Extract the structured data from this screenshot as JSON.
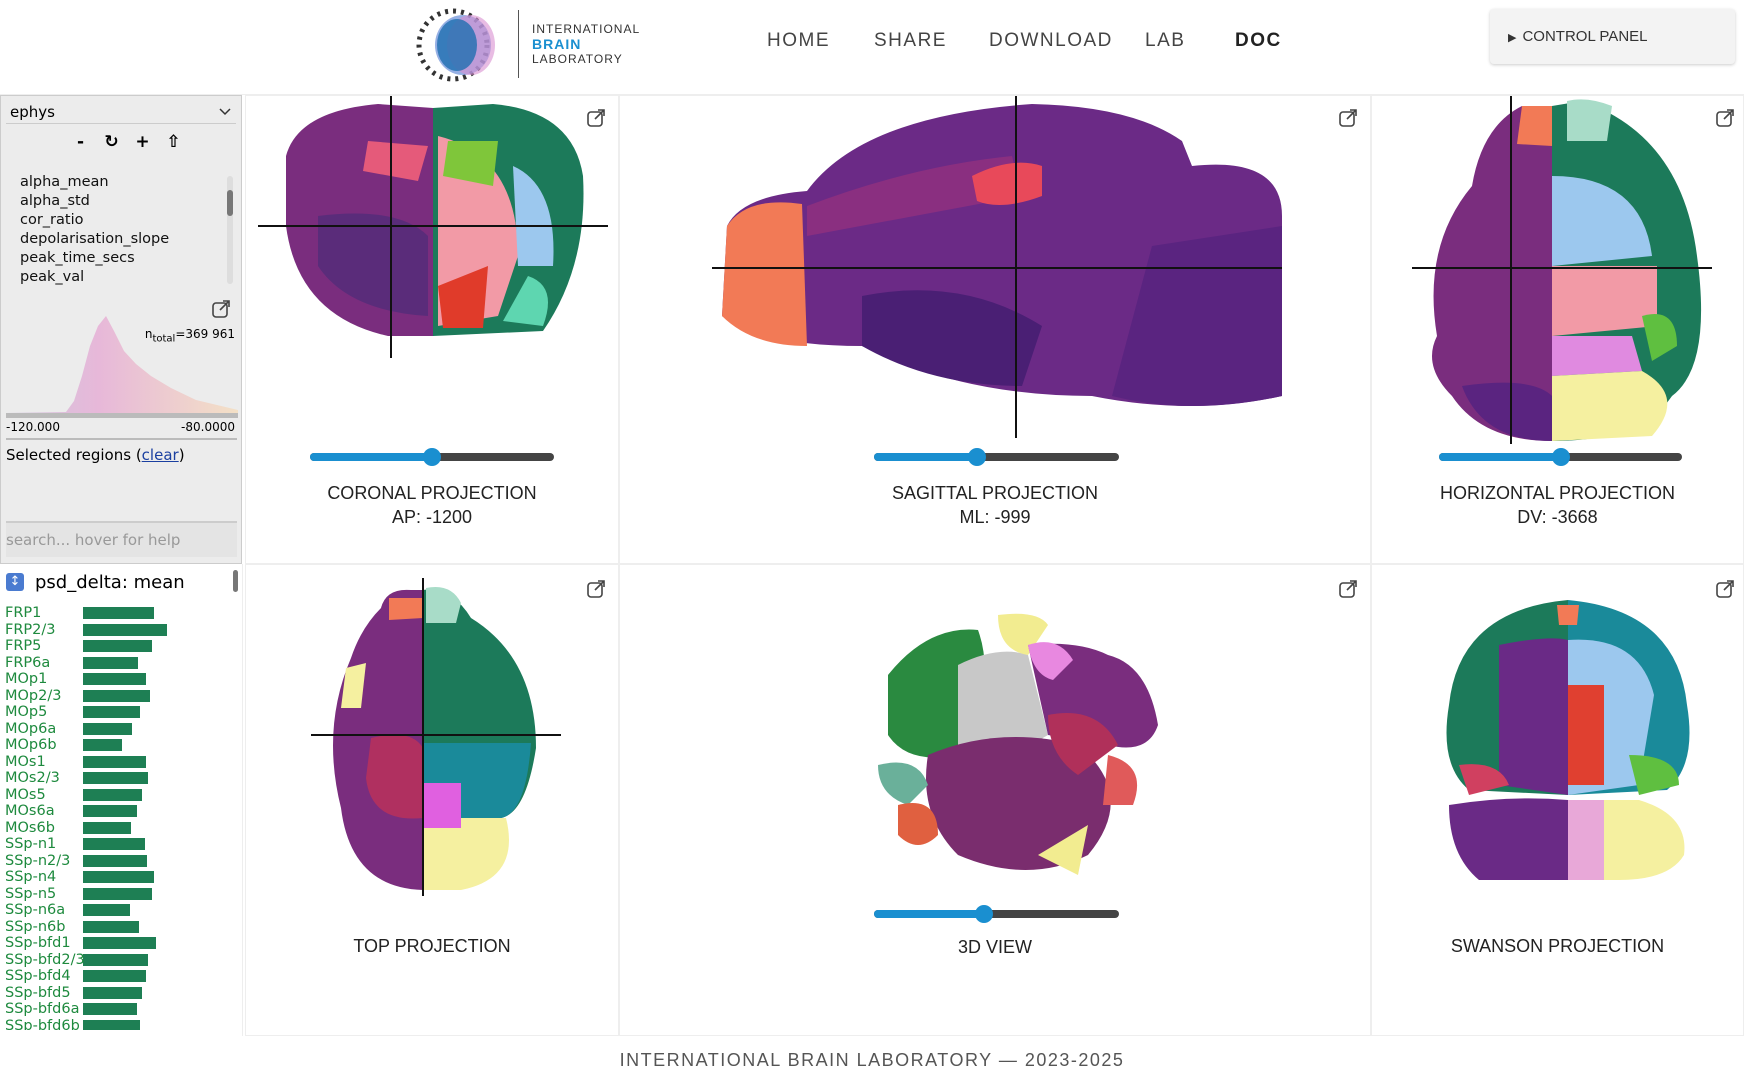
{
  "header": {
    "logo": [
      "INTERNATIONAL",
      "BRAIN",
      "LABORATORY"
    ],
    "nav": [
      "HOME",
      "SHARE",
      "DOWNLOAD",
      "LAB",
      "DOC"
    ],
    "control_panel": "CONTROL PANEL"
  },
  "sidebar": {
    "dataset": "ephys",
    "buttons": [
      "-",
      "↻",
      "+",
      "⇧"
    ],
    "features": [
      "alpha_mean",
      "alpha_std",
      "cor_ratio",
      "depolarisation_slope",
      "peak_time_secs",
      "peak_val"
    ],
    "histogram": {
      "n_label": "n",
      "n_sub": "total",
      "n_value": "=369 961",
      "min": "-120.000",
      "max": "-80.0000"
    },
    "selected_regions": "Selected regions (",
    "clear": "clear",
    "selected_close": ")",
    "search_placeholder": "search... hover for help"
  },
  "region_list": {
    "title": "psd_delta: mean",
    "regions": [
      "FRP1",
      "FRP2/3",
      "FRP5",
      "FRP6a",
      "MOp1",
      "MOp2/3",
      "MOp5",
      "MOp6a",
      "MOp6b",
      "MOs1",
      "MOs2/3",
      "MOs5",
      "MOs6a",
      "MOs6b",
      "SSp-n1",
      "SSp-n2/3",
      "SSp-n4",
      "SSp-n5",
      "SSp-n6a",
      "SSp-n6b",
      "SSp-bfd1",
      "SSp-bfd2/3",
      "SSp-bfd4",
      "SSp-bfd5",
      "SSp-bfd6a",
      "SSp-bfd6b"
    ],
    "values": [
      63,
      75,
      62,
      49,
      56,
      60,
      51,
      44,
      35,
      56,
      58,
      53,
      48,
      43,
      55,
      57,
      63,
      62,
      42,
      50,
      65,
      58,
      56,
      53,
      48,
      51
    ]
  },
  "panels": [
    {
      "title": "CORONAL PROJECTION",
      "coord": "AP: -1200"
    },
    {
      "title": "SAGITTAL PROJECTION",
      "coord": "ML: -999"
    },
    {
      "title": "HORIZONTAL PROJECTION",
      "coord": "DV: -3668"
    },
    {
      "title": "TOP PROJECTION"
    },
    {
      "title": "3D VIEW"
    },
    {
      "title": "SWANSON PROJECTION"
    }
  ],
  "footer": "INTERNATIONAL BRAIN LABORATORY — 2023-2025"
}
